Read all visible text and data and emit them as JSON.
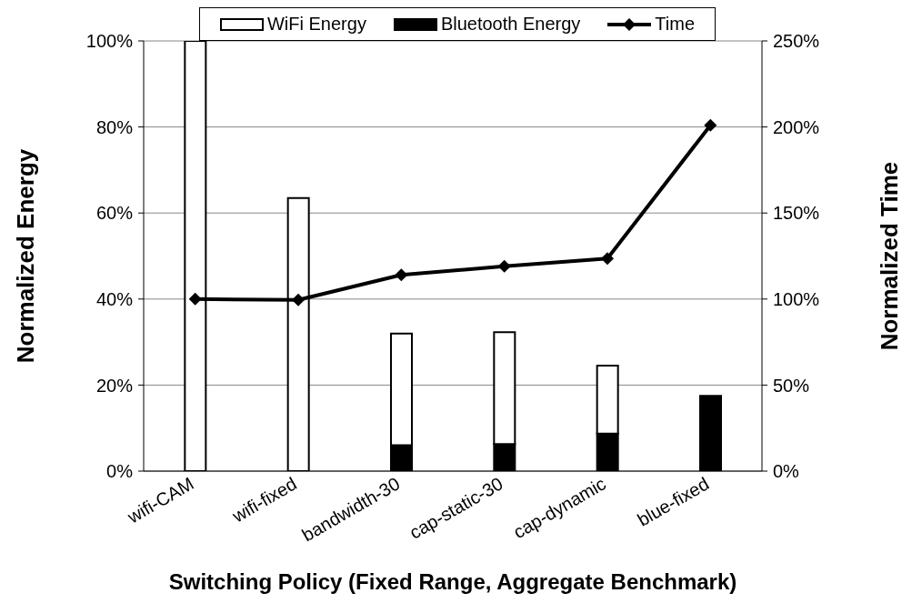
{
  "chart_data": {
    "type": "bar",
    "stacked": true,
    "xlabel": "Switching Policy (Fixed Range, Aggregate Benchmark)",
    "ylabel": "Normalized Energy",
    "y2label": "Normalized Time",
    "categories": [
      "wifi-CAM",
      "wifi-fixed",
      "bandwidth-30",
      "cap-static-30",
      "cap-dynamic",
      "blue-fixed"
    ],
    "series": [
      {
        "name": "Bluetooth Energy",
        "color": "#000000",
        "values": [
          0,
          0,
          6,
          6.3,
          8.7,
          17.5
        ]
      },
      {
        "name": "WiFi Energy",
        "color": "#ffffff",
        "values": [
          100,
          63.5,
          26,
          26,
          15.8,
          0
        ]
      },
      {
        "name": "Time",
        "type": "line",
        "axis": "y2",
        "color": "#000000",
        "marker": "diamond",
        "values": [
          100,
          99.5,
          114,
          119,
          123.5,
          201
        ]
      }
    ],
    "ylim": [
      0,
      100
    ],
    "yticks": [
      {
        "value": 0,
        "label": "0%"
      },
      {
        "value": 20,
        "label": "20%"
      },
      {
        "value": 40,
        "label": "40%"
      },
      {
        "value": 60,
        "label": "60%"
      },
      {
        "value": 80,
        "label": "80%"
      },
      {
        "value": 100,
        "label": "100%"
      }
    ],
    "y2lim": [
      0,
      250
    ],
    "y2ticks": [
      {
        "value": 0,
        "label": "0%"
      },
      {
        "value": 50,
        "label": "50%"
      },
      {
        "value": 100,
        "label": "100%"
      },
      {
        "value": 150,
        "label": "150%"
      },
      {
        "value": 200,
        "label": "200%"
      },
      {
        "value": 250,
        "label": "250%"
      }
    ],
    "grid": "y",
    "legend": "top"
  }
}
